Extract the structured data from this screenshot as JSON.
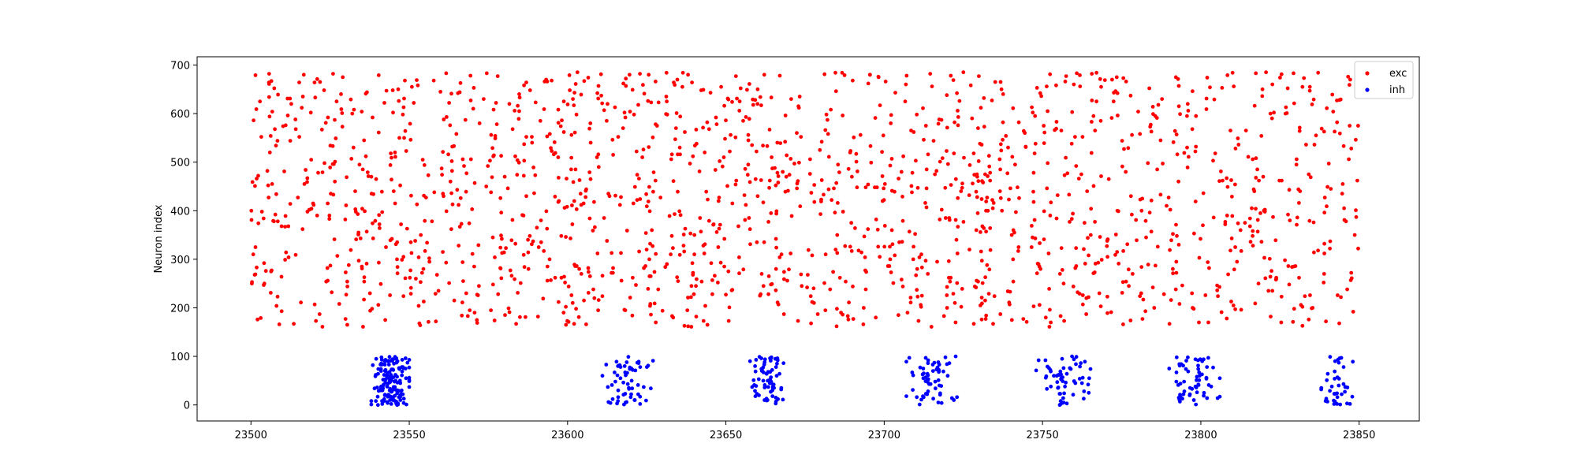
{
  "chart_data": {
    "type": "scatter",
    "title": "",
    "xlabel": "",
    "ylabel": "Neuron index",
    "xlim": [
      23483,
      23869
    ],
    "ylim": [
      -33,
      717
    ],
    "xticks": [
      23500,
      23550,
      23600,
      23650,
      23700,
      23750,
      23800,
      23850
    ],
    "yticks": [
      0,
      100,
      200,
      300,
      400,
      500,
      600,
      700
    ],
    "grid": false,
    "legend_position": "top-right",
    "series": [
      {
        "name": "exc",
        "color": "#ff0000",
        "neuron_range": [
          160,
          685
        ],
        "t_range": [
          23500,
          23850
        ],
        "approx_points": 1700
      },
      {
        "name": "inh",
        "color": "#0000ff",
        "neuron_range": [
          0,
          100
        ],
        "bursts": [
          {
            "t_center": 23544,
            "t_spread": 6,
            "count": 150
          },
          {
            "t_center": 23619,
            "t_spread": 8,
            "count": 60
          },
          {
            "t_center": 23663,
            "t_spread": 6,
            "count": 70
          },
          {
            "t_center": 23715,
            "t_spread": 8,
            "count": 60
          },
          {
            "t_center": 23757,
            "t_spread": 9,
            "count": 60
          },
          {
            "t_center": 23798,
            "t_spread": 8,
            "count": 60
          },
          {
            "t_center": 23843,
            "t_spread": 5,
            "count": 40
          }
        ]
      }
    ]
  }
}
